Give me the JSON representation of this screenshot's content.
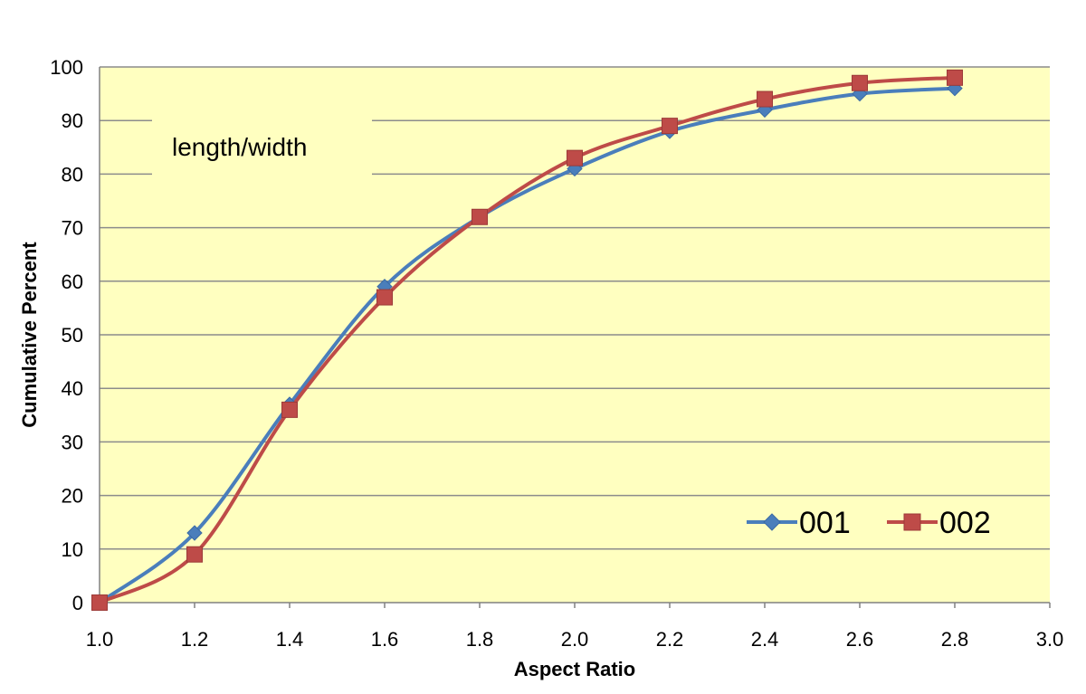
{
  "chart_data": {
    "type": "line",
    "xlabel": "Aspect Ratio",
    "ylabel": "Cumulative Percent",
    "xlim": [
      1.0,
      3.0
    ],
    "ylim": [
      0,
      100
    ],
    "xticks": [
      "1.0",
      "1.2",
      "1.4",
      "1.6",
      "1.8",
      "2.0",
      "2.2",
      "2.4",
      "2.6",
      "2.8",
      "3.0"
    ],
    "yticks": [
      "0",
      "10",
      "20",
      "30",
      "40",
      "50",
      "60",
      "70",
      "80",
      "90",
      "100"
    ],
    "grid": "horizontal",
    "smooth": true,
    "background_color": "#FFFFC0",
    "annotation": "length/width",
    "legend_position": "bottom-right",
    "series": [
      {
        "name": "001",
        "marker": "diamond",
        "color": "#4A7EBB",
        "x": [
          1.0,
          1.2,
          1.4,
          1.6,
          1.8,
          2.0,
          2.2,
          2.4,
          2.6,
          2.8
        ],
        "y": [
          0,
          13,
          37,
          59,
          72,
          81,
          88,
          92,
          95,
          96
        ]
      },
      {
        "name": "002",
        "marker": "square",
        "color": "#BE4B48",
        "x": [
          1.0,
          1.2,
          1.4,
          1.6,
          1.8,
          2.0,
          2.2,
          2.4,
          2.6,
          2.8
        ],
        "y": [
          0,
          9,
          36,
          57,
          72,
          83,
          89,
          94,
          97,
          98
        ]
      }
    ]
  }
}
